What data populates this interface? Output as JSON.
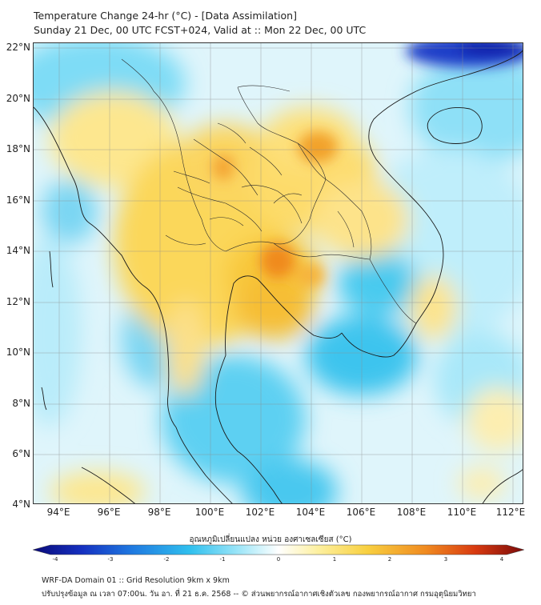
{
  "title": {
    "line1": "Temperature Change 24-hr (°C) - [Data Assimilation]",
    "line2": "Sunday 21 Dec, 00 UTC FCST+024, Valid at :: Mon 22 Dec, 00 UTC"
  },
  "map": {
    "lat_labels": [
      "22°N",
      "20°N",
      "18°N",
      "16°N",
      "14°N",
      "12°N",
      "10°N",
      "8°N",
      "6°N",
      "4°N"
    ],
    "lon_labels": [
      "94°E",
      "96°E",
      "98°E",
      "100°E",
      "102°E",
      "104°E",
      "106°E",
      "108°E",
      "110°E",
      "112°E"
    ],
    "extent": {
      "lon_min": 93,
      "lon_max": 112.5,
      "lat_min": 4,
      "lat_max": 22.2
    },
    "colors": {
      "cool_blue": "#3cc8ef",
      "light_cyan": "#bfeefb",
      "neutral": "#f4fbf4",
      "warm_yellow": "#fde58a",
      "orange": "#f6c030",
      "hot_orange": "#f08a1a",
      "deep_blue": "#0c1ca8",
      "border_line": "#1a1a1a",
      "grid_line": "#888888"
    }
  },
  "colorbar": {
    "title": "อุณหภูมิเปลี่ยนแปลง หน่วย องศาเซลเซียส (°C)",
    "ticks": [
      "-4",
      "-3",
      "-2",
      "-1",
      "0",
      "1",
      "2",
      "3",
      "4"
    ],
    "min": -4,
    "max": 4,
    "stops": [
      "#0a0a78",
      "#1530c0",
      "#1f78e0",
      "#30c0ee",
      "#9ee6f8",
      "#ffffff",
      "#fdf0a0",
      "#f8d040",
      "#f08a20",
      "#d83a10",
      "#7a0a0a"
    ]
  },
  "footer": {
    "line1": "WRF-DA Domain 01 :: Grid Resolution 9km x 9km",
    "line2": "ปรับปรุงข้อมูล ณ เวลา 07:00น. วัน อา. ที่ 21 ธ.ค. 2568 -- © ส่วนพยากรณ์อากาศเชิงตัวเลข กองพยากรณ์อากาศ กรมอุตุนิยมวิทยา"
  }
}
